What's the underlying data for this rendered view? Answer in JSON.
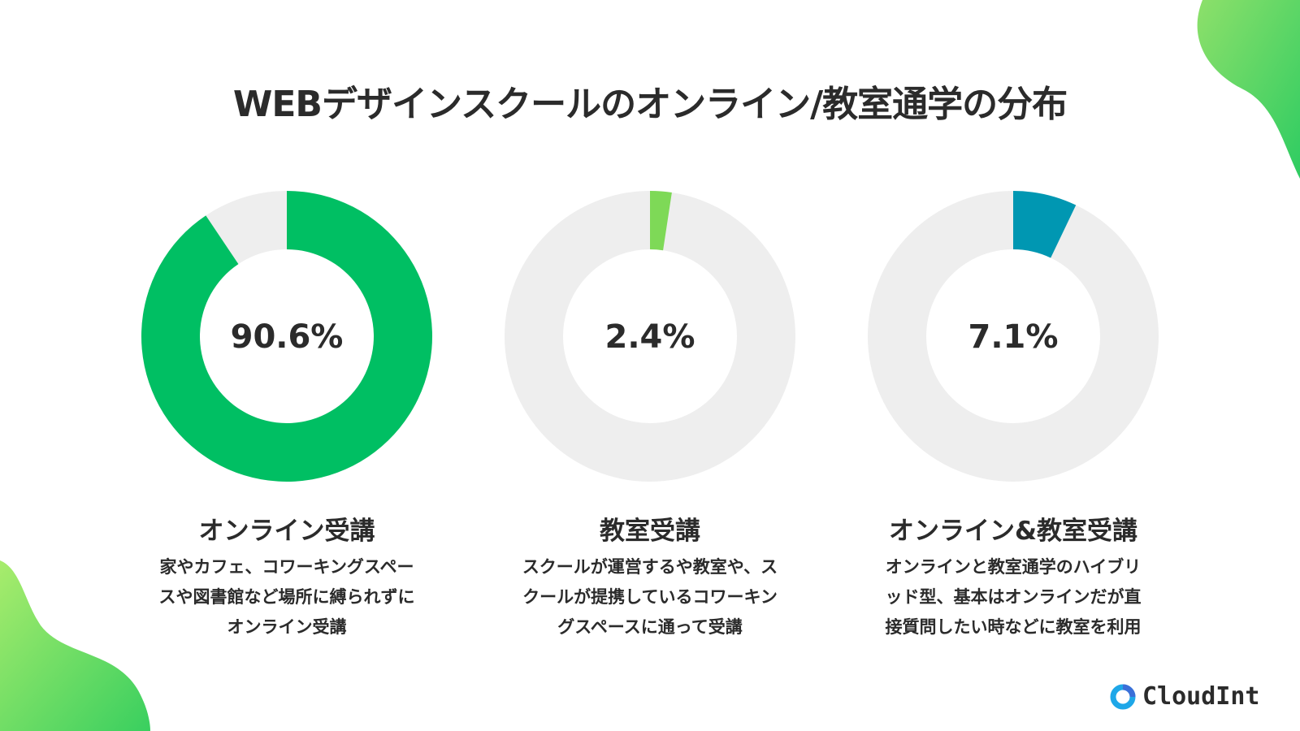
{
  "title": "WEBデザインスクールのオンライン/教室通学の分布",
  "chart_data": {
    "type": "pie",
    "variant": "donut",
    "title": "WEBデザインスクールのオンライン/教室通学の分布",
    "charts": [
      {
        "name": "オンライン受講",
        "value": 90.6,
        "value_label": "90.6%",
        "color": "#00BF63",
        "description": [
          "家やカフェ、コワーキングスペー",
          "スや図書館など場所に縛られずに",
          "オンライン受講"
        ]
      },
      {
        "name": "教室受講",
        "value": 2.4,
        "value_label": "2.4%",
        "color": "#7ED957",
        "description": [
          "スクールが運営するや教室や、ス",
          "クールが提携しているコワーキン",
          "グスペースに通って受講"
        ]
      },
      {
        "name": "オンライン&教室受講",
        "value": 7.1,
        "value_label": "7.1%",
        "color": "#0097B2",
        "description": [
          "オンラインと教室通学のハイブリ",
          "ッド型、基本はオンラインだが直",
          "接質問したい時などに教室を利用"
        ]
      }
    ],
    "remainder_color": "#EEEEEE"
  },
  "logo": {
    "text": "CloudInt"
  }
}
